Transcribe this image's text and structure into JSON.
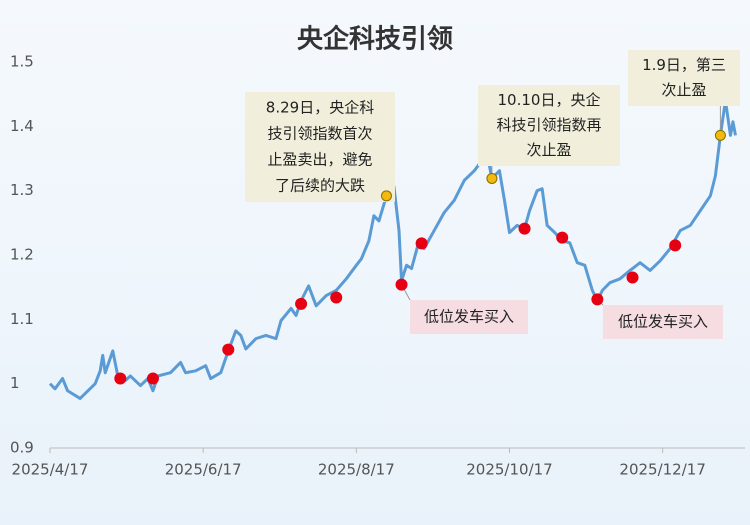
{
  "chart_data": {
    "type": "line",
    "title": "央企科技引领",
    "x": [
      "2025/4/17",
      "2025/4/19",
      "2025/4/22",
      "2025/4/24",
      "2025/4/29",
      "2025/5/5",
      "2025/5/7",
      "2025/5/8",
      "2025/5/9",
      "2025/5/12",
      "2025/5/14",
      "2025/5/17",
      "2025/5/19",
      "2025/5/23",
      "2025/5/26",
      "2025/5/28",
      "2025/5/30",
      "2025/6/4",
      "2025/6/8",
      "2025/6/10",
      "2025/6/14",
      "2025/6/18",
      "2025/6/20",
      "2025/6/24",
      "2025/6/27",
      "2025/6/30",
      "2025/7/2",
      "2025/7/4",
      "2025/7/8",
      "2025/7/12",
      "2025/7/16",
      "2025/7/18",
      "2025/7/22",
      "2025/7/24",
      "2025/7/26",
      "2025/7/29",
      "2025/8/1",
      "2025/8/5",
      "2025/8/9",
      "2025/8/13",
      "2025/8/17",
      "2025/8/19",
      "2025/8/22",
      "2025/8/24",
      "2025/8/26",
      "2025/8/29",
      "2025/8/31",
      "2025/9/1",
      "2025/9/3",
      "2025/9/4",
      "2025/9/6",
      "2025/9/8",
      "2025/9/11",
      "2025/9/13",
      "2025/9/17",
      "2025/9/21",
      "2025/9/25",
      "2025/9/29",
      "2025/10/3",
      "2025/10/6",
      "2025/10/8",
      "2025/10/10",
      "2025/10/13",
      "2025/10/15",
      "2025/10/17",
      "2025/10/20",
      "2025/10/23",
      "2025/10/25",
      "2025/10/28",
      "2025/10/30",
      "2025/11/1",
      "2025/11/4",
      "2025/11/7",
      "2025/11/10",
      "2025/11/13",
      "2025/11/16",
      "2025/11/19",
      "2025/11/21",
      "2025/11/23",
      "2025/11/26",
      "2025/11/30",
      "2025/12/4",
      "2025/12/8",
      "2025/12/12",
      "2025/12/16",
      "2025/12/20",
      "2025/12/24",
      "2025/12/28",
      "2026/1/1",
      "2026/1/5",
      "2026/1/7",
      "2026/1/9",
      "2026/1/11",
      "2026/1/13",
      "2026/1/14",
      "2026/1/15"
    ],
    "series": [
      {
        "color": "#5b9bd5",
        "values": [
          1.0,
          0.992,
          1.008,
          0.989,
          0.977,
          1.0,
          1.02,
          1.044,
          1.017,
          1.051,
          1.012,
          1.005,
          1.012,
          0.997,
          1.008,
          0.989,
          1.012,
          1.017,
          1.033,
          1.017,
          1.02,
          1.028,
          1.008,
          1.017,
          1.051,
          1.082,
          1.075,
          1.054,
          1.07,
          1.075,
          1.07,
          1.098,
          1.117,
          1.106,
          1.129,
          1.152,
          1.121,
          1.137,
          1.145,
          1.163,
          1.184,
          1.194,
          1.222,
          1.261,
          1.253,
          1.292,
          1.3,
          1.306,
          1.238,
          1.16,
          1.184,
          1.179,
          1.222,
          1.21,
          1.238,
          1.266,
          1.285,
          1.316,
          1.331,
          1.347,
          1.359,
          1.319,
          1.331,
          1.285,
          1.235,
          1.246,
          1.241,
          1.269,
          1.3,
          1.303,
          1.246,
          1.235,
          1.222,
          1.219,
          1.188,
          1.184,
          1.145,
          1.129,
          1.145,
          1.157,
          1.163,
          1.176,
          1.188,
          1.176,
          1.191,
          1.21,
          1.238,
          1.246,
          1.269,
          1.292,
          1.323,
          1.386,
          1.44,
          1.386,
          1.407,
          1.386
        ]
      }
    ],
    "markers": [
      {
        "color": "#e60012",
        "x": [
          "2025/5/15",
          "2025/5/28",
          "2025/6/27",
          "2025/7/26",
          "2025/8/9",
          "2025/9/4",
          "2025/9/12",
          "2025/10/23",
          "2025/11/7",
          "2025/11/21",
          "2025/12/5",
          "2025/12/22"
        ],
        "values": [
          1.008,
          1.008,
          1.053,
          1.124,
          1.134,
          1.154,
          1.218,
          1.241,
          1.227,
          1.131,
          1.165,
          1.215
        ]
      },
      {
        "color": "#f2b90f",
        "x": [
          "2025/8/29",
          "2025/10/10",
          "2026/1/9"
        ],
        "values": [
          1.292,
          1.319,
          1.386
        ]
      }
    ],
    "annotations": [
      {
        "lines": [
          "8.29日，央企科",
          "技引领指数首次",
          "止盈卖出，避免",
          "了后续的大跌"
        ],
        "background": "#f1efdc"
      },
      {
        "lines": [
          "10.10日，央企",
          "科技引领指数再",
          "次止盈"
        ],
        "background": "#f1efdc"
      },
      {
        "lines": [
          "1.9日，第三",
          "次止盈"
        ],
        "background": "#f1efdc"
      },
      {
        "lines": [
          "低位发车买入"
        ],
        "background": "#f5dde2"
      },
      {
        "lines": [
          "低位发车买入"
        ],
        "background": "#f5dde2"
      }
    ],
    "xlim": [
      "2025/4/17",
      "2026/1/18"
    ],
    "xticks": [
      "2025/4/17",
      "2025/6/17",
      "2025/8/17",
      "2025/10/17",
      "2025/12/17"
    ],
    "ylim": [
      0.9,
      1.5
    ],
    "yticks": [
      0.9,
      1,
      1.1,
      1.2,
      1.3,
      1.4,
      1.5
    ],
    "grid": false
  }
}
